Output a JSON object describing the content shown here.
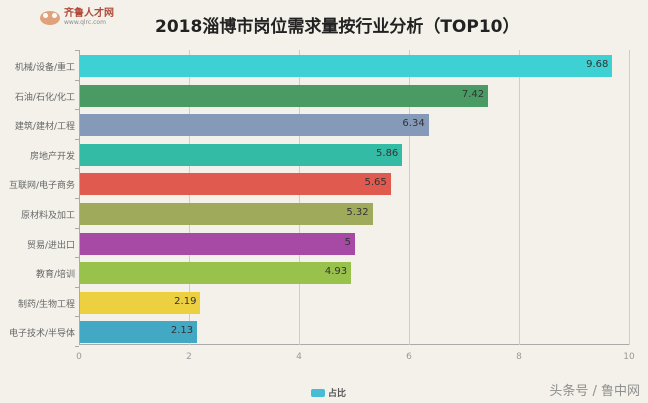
{
  "logo": {
    "name": "齐鲁人才网",
    "url": "www.qlrc.com"
  },
  "chart_data": {
    "type": "bar",
    "orientation": "horizontal",
    "title": "2018淄博市岗位需求量按行业分析（TOP10）",
    "categories": [
      "机械/设备/重工",
      "石油/石化/化工",
      "建筑/建材/工程",
      "房地产开发",
      "互联网/电子商务",
      "原材料及加工",
      "贸易/进出口",
      "教育/培训",
      "制药/生物工程",
      "电子技术/半导体"
    ],
    "series": [
      {
        "name": "占比",
        "values": [
          9.68,
          7.42,
          6.34,
          5.86,
          5.65,
          5.32,
          5,
          4.93,
          2.19,
          2.13
        ]
      }
    ],
    "value_labels": [
      "9.68",
      "7.42",
      "6.34",
      "5.86",
      "5.65",
      "5.32",
      "5",
      "4.93",
      "2.19",
      "2.13"
    ],
    "colors": [
      "#3ed1d3",
      "#4a9a64",
      "#8599b8",
      "#33bba6",
      "#e05a50",
      "#9fab5a",
      "#a64aa6",
      "#98c24c",
      "#ecd040",
      "#43a8c4"
    ],
    "xlim": [
      0,
      10
    ],
    "xticks": [
      "0",
      "2",
      "4",
      "6",
      "8",
      "10"
    ],
    "xlabel": "",
    "ylabel": "",
    "grid": true,
    "legend": {
      "position": "bottom",
      "entries": [
        "占比"
      ],
      "color": "#48bcd4"
    }
  },
  "watermark": "头条号 / 鲁中网"
}
